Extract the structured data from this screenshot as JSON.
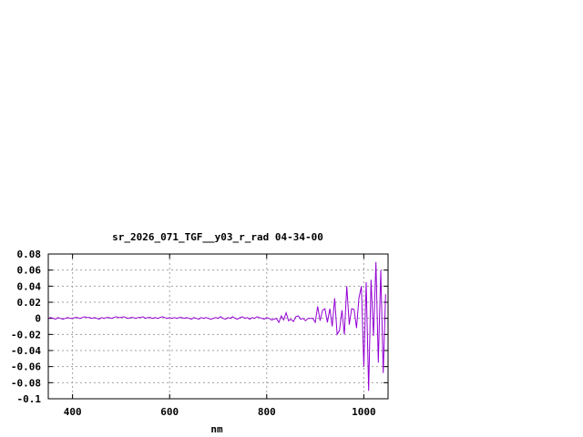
{
  "chart_data": {
    "type": "line",
    "title": "sr_2026_071_TGF__y03_r_rad 04-34-00",
    "xlabel": "nm",
    "ylabel": "",
    "xlim": [
      350,
      1050
    ],
    "ylim": [
      -0.1,
      0.08
    ],
    "xticks": [
      400,
      600,
      800,
      1000
    ],
    "xtick_labels": [
      "400",
      "600",
      "800",
      "1000"
    ],
    "yticks": [
      0.08,
      0.06,
      0.04,
      0.02,
      0,
      -0.02,
      -0.04,
      -0.06,
      -0.08,
      -0.1
    ],
    "ytick_labels": [
      "0.08",
      "0.06",
      "0.04",
      "0.02",
      "0",
      "-0.02",
      "-0.04",
      "-0.06",
      "-0.08",
      "-0.1"
    ],
    "grid": true,
    "legend": "none",
    "colors": {
      "series": "#9400d3",
      "grid": "#a0a0a0",
      "axes": "#000000"
    },
    "series": [
      {
        "x": [
          350,
          355,
          360,
          365,
          370,
          375,
          380,
          385,
          390,
          395,
          400,
          405,
          410,
          415,
          420,
          425,
          430,
          435,
          440,
          445,
          450,
          455,
          460,
          465,
          470,
          475,
          480,
          485,
          490,
          495,
          500,
          505,
          510,
          515,
          520,
          525,
          530,
          535,
          540,
          545,
          550,
          555,
          560,
          565,
          570,
          575,
          580,
          585,
          590,
          595,
          600,
          605,
          610,
          615,
          620,
          625,
          630,
          635,
          640,
          645,
          650,
          655,
          660,
          665,
          670,
          675,
          680,
          685,
          690,
          695,
          700,
          705,
          710,
          715,
          720,
          725,
          730,
          735,
          740,
          745,
          750,
          755,
          760,
          765,
          770,
          775,
          780,
          785,
          790,
          795,
          800,
          805,
          810,
          815,
          820,
          825,
          830,
          835,
          840,
          845,
          850,
          855,
          860,
          865,
          870,
          875,
          880,
          885,
          890,
          895,
          900,
          905,
          910,
          915,
          920,
          925,
          930,
          935,
          940,
          945,
          950,
          955,
          960,
          965,
          970,
          975,
          980,
          985,
          990,
          995,
          1000,
          1005,
          1010,
          1015,
          1020,
          1025,
          1030,
          1035,
          1040,
          1045
        ],
        "y": [
          0,
          0.001,
          0,
          -0.001,
          0.001,
          0,
          -0.001,
          0,
          0.001,
          0,
          0,
          0.001,
          0.001,
          0,
          0.001,
          0.002,
          0.001,
          0.001,
          0,
          0.001,
          0,
          -0.001,
          0.001,
          0,
          0.001,
          0.001,
          0,
          0.001,
          0.002,
          0.001,
          0.001,
          0.002,
          0.001,
          0,
          0.001,
          0.001,
          0,
          0.001,
          0.001,
          0.002,
          0,
          0.001,
          0.001,
          0,
          0.001,
          0,
          0.001,
          0.002,
          0.001,
          0,
          0.001,
          0,
          0.001,
          0,
          0.001,
          0.001,
          0,
          0.001,
          0,
          -0.001,
          0.001,
          0,
          -0.001,
          0.001,
          0,
          0.001,
          0,
          -0.001,
          0,
          0.001,
          0,
          0.002,
          0,
          -0.001,
          0.001,
          0,
          0.002,
          0,
          -0.001,
          0.001,
          0.002,
          0,
          0.001,
          -0.001,
          0.001,
          0,
          0.002,
          0.001,
          0,
          -0.001,
          0.001,
          0,
          -0.002,
          -0.001,
          0,
          -0.005,
          0.003,
          -0.002,
          0.007,
          -0.003,
          -0.001,
          -0.004,
          0.002,
          0.003,
          -0.001,
          0,
          -0.003,
          0,
          0,
          0,
          -0.005,
          0.015,
          -0.003,
          0.01,
          0.012,
          -0.005,
          0.012,
          -0.01,
          0.025,
          -0.02,
          -0.015,
          0.01,
          -0.02,
          0.04,
          -0.008,
          0.012,
          0.011,
          -0.012,
          0.025,
          0.04,
          -0.06,
          0.045,
          -0.09,
          0.048,
          -0.022,
          0.07,
          -0.055,
          0.06,
          -0.068,
          0.03
        ]
      }
    ]
  }
}
